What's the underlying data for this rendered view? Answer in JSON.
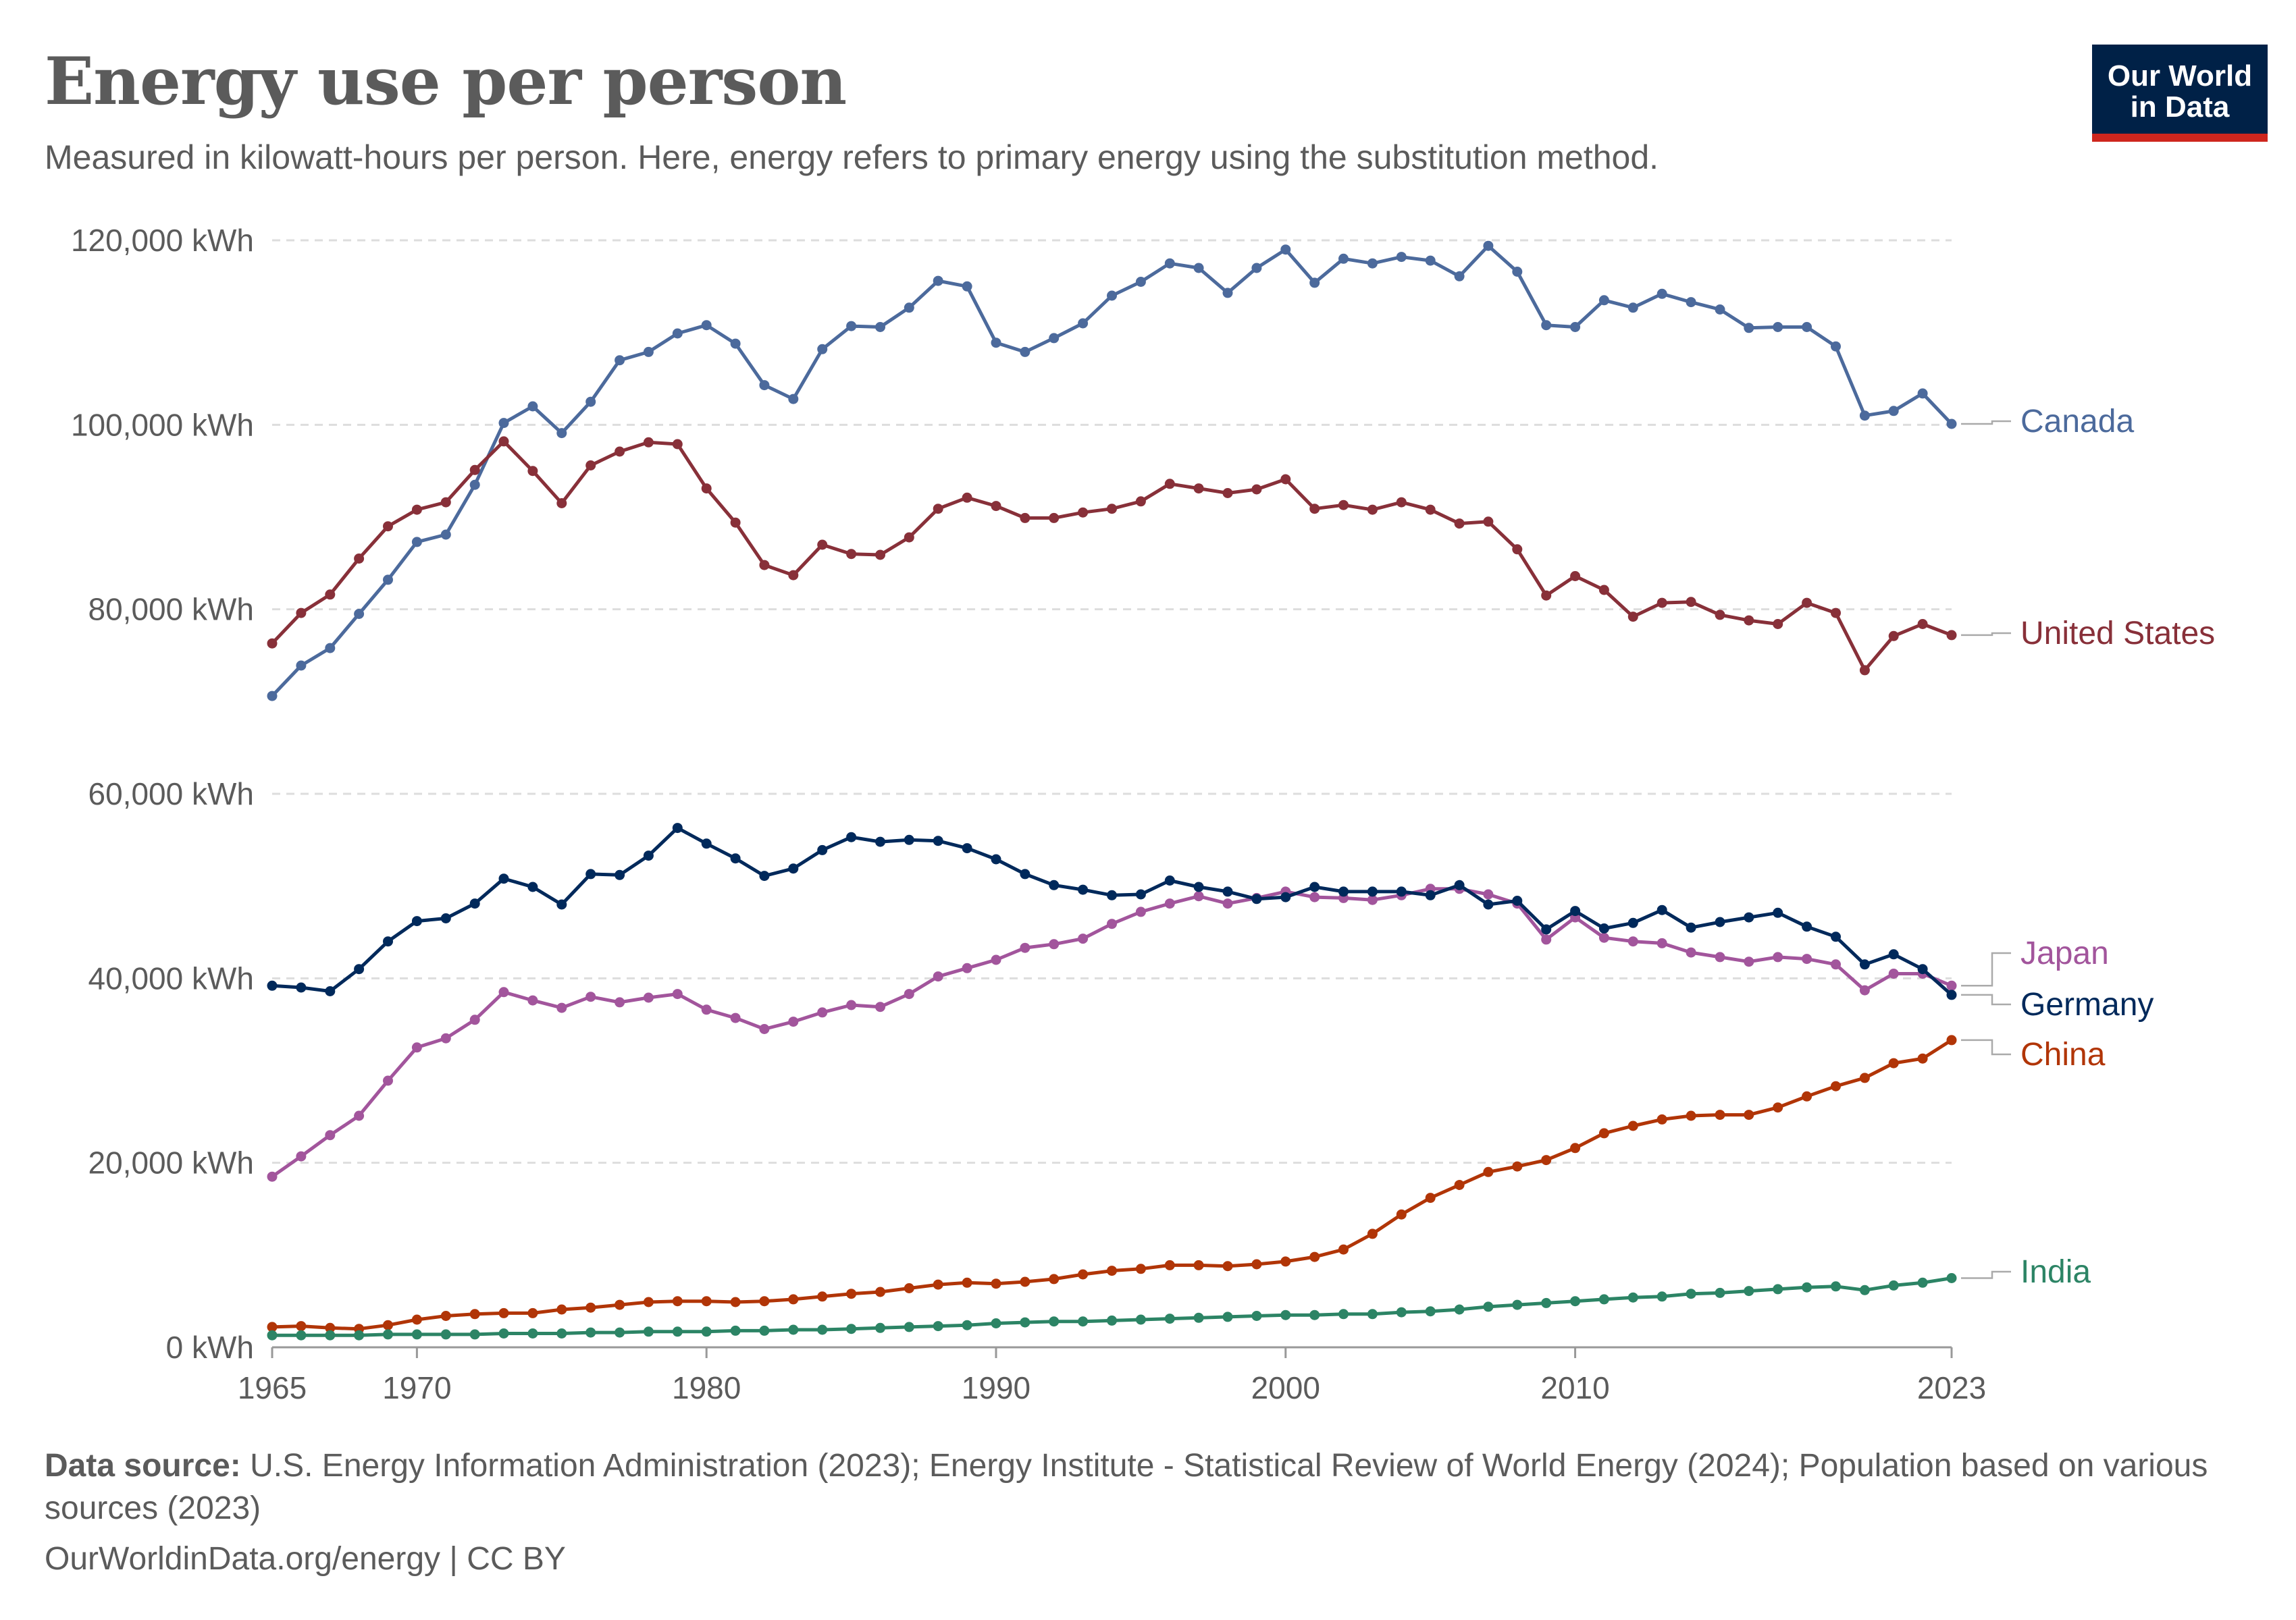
{
  "header": {
    "title": "Energy use per person",
    "subtitle": "Measured in kilowatt-hours per person. Here, energy refers to primary energy using the substitution method."
  },
  "logo": {
    "line1": "Our World",
    "line2": "in Data"
  },
  "footer": {
    "source_label": "Data source:",
    "source_text": "U.S. Energy Information Administration (2023); Energy Institute - Statistical Review of World Energy (2024); Population based on various sources (2023)",
    "url_text": "OurWorldinData.org/energy | CC BY"
  },
  "chart_data": {
    "type": "line",
    "title": "Energy use per person",
    "unit": "kWh",
    "x_start": 1965,
    "x_end": 2023,
    "xlim": [
      1965,
      2023
    ],
    "ylim": [
      0,
      120000
    ],
    "y_ticks": [
      0,
      20000,
      40000,
      60000,
      80000,
      100000,
      120000
    ],
    "y_tick_labels": [
      "0 kWh",
      "20,000 kWh",
      "40,000 kWh",
      "60,000 kWh",
      "80,000 kWh",
      "100,000 kWh",
      "120,000 kWh"
    ],
    "x_ticks": [
      1965,
      1970,
      1980,
      1990,
      2000,
      2010,
      2023
    ],
    "x_tick_labels": [
      "1965",
      "1970",
      "1980",
      "1990",
      "2000",
      "2010",
      "2023"
    ],
    "grid": "horizontal dashed",
    "legend": "right-end labels",
    "series": [
      {
        "name": "Canada",
        "color": "#4c6a9c",
        "values": [
          70600,
          73900,
          75800,
          79500,
          83200,
          87300,
          88100,
          93500,
          100200,
          102000,
          99100,
          102500,
          107000,
          107900,
          109900,
          110800,
          108800,
          104300,
          102800,
          108200,
          110700,
          110600,
          112700,
          115600,
          115000,
          108900,
          107900,
          109400,
          111000,
          114000,
          115500,
          117500,
          117000,
          114300,
          117000,
          119000,
          115400,
          118000,
          117500,
          118200,
          117800,
          116100,
          119400,
          116600,
          110800,
          110600,
          113500,
          112700,
          114200,
          113300,
          112500,
          110500,
          110600,
          110600,
          108500,
          101000,
          101500,
          103400,
          100100
        ]
      },
      {
        "name": "United States",
        "color": "#883039",
        "values": [
          76300,
          79600,
          81600,
          85500,
          89000,
          90800,
          91600,
          95100,
          98200,
          95000,
          91500,
          95600,
          97100,
          98100,
          97900,
          93100,
          89400,
          84800,
          83700,
          87000,
          86000,
          85900,
          87800,
          90900,
          92100,
          91200,
          89900,
          89900,
          90500,
          90900,
          91700,
          93600,
          93100,
          92600,
          93000,
          94100,
          90900,
          91300,
          90800,
          91600,
          90800,
          89300,
          89500,
          86500,
          81500,
          83600,
          82100,
          79200,
          80700,
          80800,
          79400,
          78800,
          78400,
          80700,
          79600,
          73400,
          77100,
          78400,
          77200
        ]
      },
      {
        "name": "Japan",
        "color": "#a2559c",
        "values": [
          18500,
          20700,
          23000,
          25100,
          28900,
          32500,
          33500,
          35500,
          38500,
          37600,
          36800,
          38000,
          37400,
          37900,
          38300,
          36600,
          35700,
          34500,
          35300,
          36300,
          37100,
          36900,
          38300,
          40200,
          41100,
          42000,
          43300,
          43700,
          44300,
          45900,
          47200,
          48100,
          48900,
          48100,
          48700,
          49400,
          48800,
          48700,
          48500,
          49000,
          49700,
          49700,
          49100,
          48100,
          44200,
          46600,
          44400,
          44000,
          43800,
          42800,
          42300,
          41800,
          42300,
          42100,
          41500,
          38700,
          40500,
          40500,
          39200
        ]
      },
      {
        "name": "Germany",
        "color": "#00295b",
        "values": [
          39200,
          39000,
          38600,
          41000,
          44000,
          46200,
          46500,
          48100,
          50800,
          49900,
          48000,
          51300,
          51200,
          53300,
          56300,
          54600,
          53000,
          51100,
          51900,
          53900,
          55300,
          54800,
          55000,
          54900,
          54100,
          52900,
          51300,
          50100,
          49600,
          49000,
          49100,
          50600,
          49900,
          49400,
          48600,
          48800,
          49900,
          49400,
          49400,
          49400,
          49000,
          50100,
          48000,
          48400,
          45300,
          47300,
          45400,
          46000,
          47400,
          45500,
          46100,
          46600,
          47100,
          45600,
          44500,
          41500,
          42600,
          41000,
          38200
        ]
      },
      {
        "name": "China",
        "color": "#b13507",
        "values": [
          2200,
          2300,
          2100,
          2000,
          2400,
          3000,
          3400,
          3600,
          3700,
          3700,
          4100,
          4300,
          4600,
          4900,
          5000,
          5000,
          4900,
          5000,
          5200,
          5500,
          5800,
          6000,
          6400,
          6800,
          7000,
          6900,
          7100,
          7400,
          7900,
          8300,
          8500,
          8900,
          8900,
          8800,
          9000,
          9300,
          9800,
          10600,
          12300,
          14400,
          16200,
          17600,
          19000,
          19600,
          20300,
          21600,
          23200,
          24000,
          24700,
          25100,
          25200,
          25200,
          26000,
          27200,
          28300,
          29200,
          30800,
          31300,
          33300
        ]
      },
      {
        "name": "India",
        "color": "#2c8465",
        "values": [
          1300,
          1300,
          1300,
          1300,
          1400,
          1400,
          1400,
          1400,
          1500,
          1500,
          1500,
          1600,
          1600,
          1700,
          1700,
          1700,
          1800,
          1800,
          1900,
          1900,
          2000,
          2100,
          2200,
          2300,
          2400,
          2600,
          2700,
          2800,
          2800,
          2900,
          3000,
          3100,
          3200,
          3300,
          3400,
          3500,
          3500,
          3600,
          3600,
          3800,
          3900,
          4100,
          4400,
          4600,
          4800,
          5000,
          5200,
          5400,
          5500,
          5800,
          5900,
          6100,
          6300,
          6500,
          6600,
          6200,
          6700,
          7000,
          7500
        ]
      }
    ]
  }
}
